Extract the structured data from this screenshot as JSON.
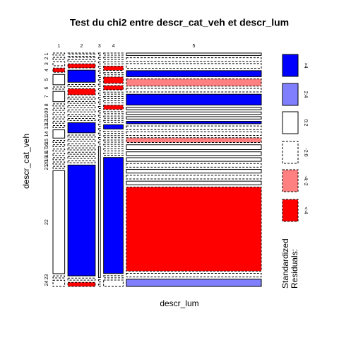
{
  "chart_data": {
    "type": "mosaic",
    "title": "Test du chi2 entre descr_cat_veh et descr_lum",
    "x_label": "descr_lum",
    "y_label": "descr_cat_veh",
    "rows": [
      "1",
      "2",
      "3",
      "4",
      "5",
      "6",
      "7",
      "8",
      "9",
      "10",
      "11",
      "12",
      "13",
      "14",
      "15",
      "16",
      "17",
      "18",
      "19",
      "20",
      "21",
      "22",
      "23",
      "24"
    ],
    "legend_title": [
      "Standardized",
      "Residuals:"
    ],
    "legend": [
      {
        "label": ">4",
        "color": "#0000ff",
        "dashed": false
      },
      {
        "label": "2:4",
        "color": "#8080ff",
        "dashed": false
      },
      {
        "label": "0:2",
        "color": "#ffffff",
        "dashed": false
      },
      {
        "label": "-2:0",
        "color": "#ffffff",
        "dashed": true
      },
      {
        "label": "-4:-2",
        "color": "#ff8080",
        "dashed": true
      },
      {
        "label": "<-4",
        "color": "#ff0000",
        "dashed": true
      }
    ],
    "series": [
      {
        "name": "1",
        "share": 6,
        "values": [
          1,
          1,
          2,
          2,
          5,
          1,
          5,
          1,
          1,
          1,
          1,
          1,
          1,
          4,
          1,
          1,
          1,
          1,
          1,
          1,
          1,
          50,
          1,
          3
        ],
        "classes": [
          3,
          3,
          3,
          5,
          2,
          3,
          2,
          3,
          3,
          3,
          3,
          3,
          3,
          2,
          3,
          3,
          3,
          3,
          3,
          3,
          3,
          2,
          3,
          3
        ]
      },
      {
        "name": "2",
        "share": 14,
        "values": [
          0.5,
          0.5,
          1,
          2,
          6,
          1,
          3,
          1,
          1,
          1,
          1,
          1,
          1,
          5,
          1,
          1,
          1,
          1,
          1,
          1,
          1,
          55,
          1,
          2
        ],
        "classes": [
          3,
          3,
          3,
          5,
          0,
          3,
          5,
          3,
          3,
          3,
          3,
          3,
          3,
          0,
          3,
          3,
          3,
          3,
          3,
          3,
          3,
          0,
          3,
          5
        ]
      },
      {
        "name": "3",
        "share": 1,
        "values": [
          1,
          1,
          1,
          1,
          1,
          1,
          1,
          1,
          1,
          1,
          1,
          1,
          1,
          1,
          1,
          1,
          1,
          1,
          1,
          1,
          1,
          60,
          1,
          1
        ],
        "classes": [
          3,
          3,
          3,
          3,
          3,
          3,
          3,
          3,
          3,
          3,
          3,
          3,
          3,
          3,
          3,
          3,
          3,
          3,
          3,
          3,
          3,
          2,
          3,
          3
        ]
      },
      {
        "name": "4",
        "share": 10,
        "values": [
          1,
          1,
          1,
          2,
          1,
          3,
          2,
          1,
          1,
          1,
          2,
          1,
          1,
          1,
          2,
          1,
          1,
          1,
          1,
          1,
          1,
          55,
          1,
          3
        ],
        "classes": [
          3,
          3,
          3,
          5,
          3,
          5,
          5,
          3,
          3,
          3,
          5,
          3,
          3,
          3,
          0,
          3,
          3,
          3,
          3,
          3,
          3,
          0,
          3,
          3
        ]
      },
      {
        "name": "5",
        "share": 69,
        "values": [
          1,
          1.5,
          2,
          2.5,
          3,
          1.5,
          4.5,
          1,
          1,
          1,
          1,
          1.5,
          1.5,
          2,
          2,
          1.5,
          1.5,
          1.5,
          1.5,
          1.5,
          1.5,
          35,
          1.5,
          3
        ],
        "classes": [
          2,
          3,
          3,
          0,
          4,
          3,
          0,
          2,
          2,
          2,
          0,
          3,
          3,
          4,
          2,
          2,
          2,
          3,
          2,
          3,
          2,
          5,
          3,
          1
        ]
      }
    ]
  }
}
